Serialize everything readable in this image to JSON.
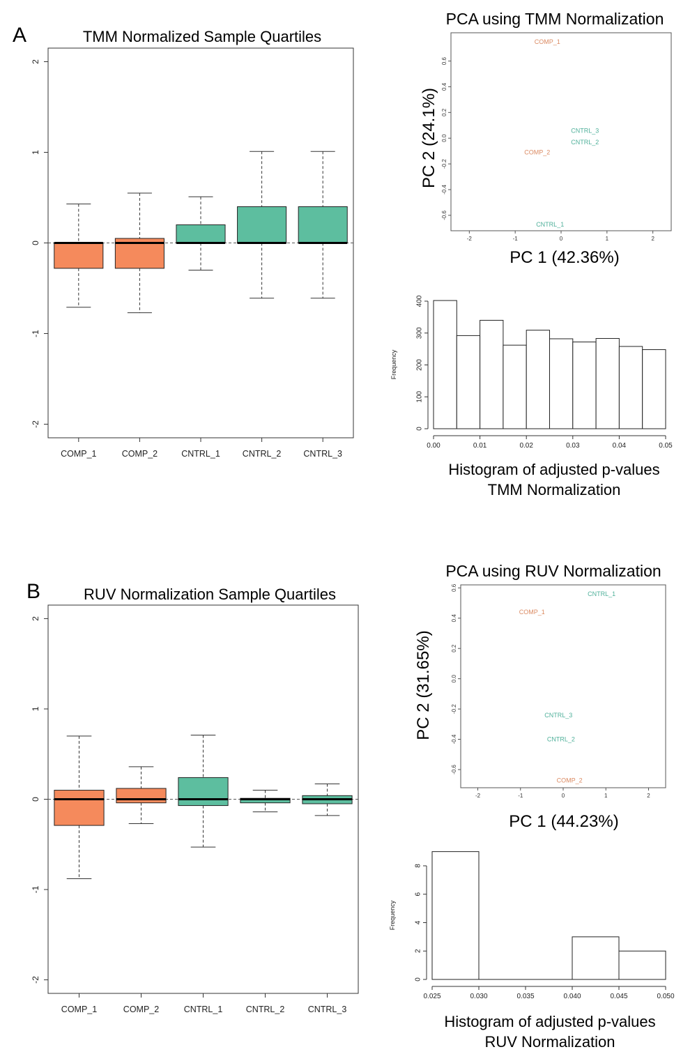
{
  "colors": {
    "comp": "#F58A5C",
    "cntrl": "#5DBE9F",
    "comp_text": "#DB8A62",
    "cntrl_text": "#4FB09A"
  },
  "panel_a": {
    "letter": "A",
    "box_title": "TMM Normalized Sample Quartiles",
    "pca_title": "PCA using TMM Normalization",
    "pca_xlabel": "PC 1 (42.36%)",
    "pca_ylabel": "PC 2 (24.1%)",
    "hist_ylabel": "Frequency",
    "hist_caption_line1": "Histogram of adjusted p-values",
    "hist_caption_line2": "TMM Normalization"
  },
  "panel_b": {
    "letter": "B",
    "box_title": "RUV Normalization Sample Quartiles",
    "pca_title": "PCA using RUV Normalization",
    "pca_xlabel": "PC 1 (44.23%)",
    "pca_ylabel": "PC 2 (31.65%)",
    "hist_ylabel": "Frequency",
    "hist_caption_line1": "Histogram of adjusted p-values",
    "hist_caption_line2": "RUV Normalization"
  },
  "chart_data": [
    {
      "type": "box",
      "title": "TMM Normalized Sample Quartiles",
      "categories": [
        "COMP_1",
        "COMP_2",
        "CNTRL_1",
        "CNTRL_2",
        "CNTRL_3"
      ],
      "groups": [
        "comp",
        "comp",
        "cntrl",
        "cntrl",
        "cntrl"
      ],
      "boxes": [
        {
          "whisker_low": -0.71,
          "q1": -0.28,
          "median": 0.0,
          "q3": 0.0,
          "whisker_high": 0.43
        },
        {
          "whisker_low": -0.77,
          "q1": -0.28,
          "median": 0.0,
          "q3": 0.05,
          "whisker_high": 0.55
        },
        {
          "whisker_low": -0.3,
          "q1": 0.0,
          "median": 0.0,
          "q3": 0.2,
          "whisker_high": 0.51
        },
        {
          "whisker_low": -0.61,
          "q1": 0.0,
          "median": 0.0,
          "q3": 0.4,
          "whisker_high": 1.01
        },
        {
          "whisker_low": -0.61,
          "q1": 0.0,
          "median": 0.0,
          "q3": 0.4,
          "whisker_high": 1.01
        }
      ],
      "ylim": [
        -2.15,
        2.15
      ],
      "yticks": [
        -2,
        -1,
        0,
        1,
        2
      ],
      "reference_line": 0
    },
    {
      "type": "scatter",
      "title": "PCA using TMM Normalization",
      "xlabel": "PC 1 (42.36%)",
      "ylabel": "PC 2 (24.1%)",
      "xlim": [
        -2.4,
        2.4
      ],
      "ylim": [
        -0.72,
        0.82
      ],
      "xticks": [
        -2,
        -1,
        0,
        1,
        2
      ],
      "yticks": [
        -0.6,
        -0.4,
        -0.2,
        0.0,
        0.2,
        0.4,
        0.6
      ],
      "points": [
        {
          "label": "COMP_1",
          "group": "comp",
          "x": -0.3,
          "y": 0.75
        },
        {
          "label": "CNTRL_3",
          "group": "cntrl",
          "x": 0.52,
          "y": 0.06
        },
        {
          "label": "CNTRL_2",
          "group": "cntrl",
          "x": 0.52,
          "y": -0.03
        },
        {
          "label": "COMP_2",
          "group": "comp",
          "x": -0.52,
          "y": -0.11
        },
        {
          "label": "CNTRL_1",
          "group": "cntrl",
          "x": -0.24,
          "y": -0.67
        }
      ]
    },
    {
      "type": "bar",
      "subtype": "histogram",
      "caption": [
        "Histogram of adjusted p-values",
        "TMM Normalization"
      ],
      "ylabel": "Frequency",
      "bin_edges": [
        0.0,
        0.005,
        0.01,
        0.015,
        0.02,
        0.025,
        0.03,
        0.035,
        0.04,
        0.045,
        0.05
      ],
      "values": [
        402,
        292,
        340,
        262,
        309,
        282,
        272,
        283,
        258,
        248
      ],
      "xlim": [
        0.0,
        0.05
      ],
      "xticks": [
        0.0,
        0.01,
        0.02,
        0.03,
        0.04,
        0.05
      ],
      "xtick_labels": [
        "0.00",
        "0.01",
        "0.02",
        "0.03",
        "0.04",
        "0.05"
      ],
      "ylim": [
        0,
        400
      ],
      "yticks": [
        0,
        100,
        200,
        300,
        400
      ]
    },
    {
      "type": "box",
      "title": "RUV Normalization Sample Quartiles",
      "categories": [
        "COMP_1",
        "COMP_2",
        "CNTRL_1",
        "CNTRL_2",
        "CNTRL_3"
      ],
      "groups": [
        "comp",
        "comp",
        "cntrl",
        "cntrl",
        "cntrl"
      ],
      "boxes": [
        {
          "whisker_low": -0.88,
          "q1": -0.29,
          "median": 0.0,
          "q3": 0.1,
          "whisker_high": 0.7
        },
        {
          "whisker_low": -0.27,
          "q1": -0.04,
          "median": 0.0,
          "q3": 0.12,
          "whisker_high": 0.36
        },
        {
          "whisker_low": -0.53,
          "q1": -0.07,
          "median": 0.0,
          "q3": 0.24,
          "whisker_high": 0.71
        },
        {
          "whisker_low": -0.14,
          "q1": -0.04,
          "median": 0.0,
          "q3": 0.01,
          "whisker_high": 0.1
        },
        {
          "whisker_low": -0.18,
          "q1": -0.05,
          "median": 0.0,
          "q3": 0.04,
          "whisker_high": 0.17
        }
      ],
      "ylim": [
        -2.15,
        2.15
      ],
      "yticks": [
        -2,
        -1,
        0,
        1,
        2
      ],
      "reference_line": 0
    },
    {
      "type": "scatter",
      "title": "PCA using RUV Normalization",
      "xlabel": "PC 1 (44.23%)",
      "ylabel": "PC 2 (31.65%)",
      "xlim": [
        -2.4,
        2.4
      ],
      "ylim": [
        -0.72,
        0.62
      ],
      "xticks": [
        -2,
        -1,
        0,
        1,
        2
      ],
      "yticks": [
        -0.6,
        -0.4,
        -0.2,
        0.0,
        0.2,
        0.4,
        0.6
      ],
      "points": [
        {
          "label": "CNTRL_1",
          "group": "cntrl",
          "x": 0.9,
          "y": 0.56
        },
        {
          "label": "COMP_1",
          "group": "comp",
          "x": -0.73,
          "y": 0.44
        },
        {
          "label": "CNTRL_3",
          "group": "cntrl",
          "x": -0.11,
          "y": -0.24
        },
        {
          "label": "CNTRL_2",
          "group": "cntrl",
          "x": -0.05,
          "y": -0.4
        },
        {
          "label": "COMP_2",
          "group": "comp",
          "x": 0.15,
          "y": -0.67
        }
      ]
    },
    {
      "type": "bar",
      "subtype": "histogram",
      "caption": [
        "Histogram of adjusted p-values",
        "RUV Normalization"
      ],
      "ylabel": "Frequency",
      "bin_edges": [
        0.025,
        0.03,
        0.035,
        0.04,
        0.045,
        0.05
      ],
      "values": [
        9,
        0,
        0,
        3,
        2
      ],
      "xlim": [
        0.025,
        0.05
      ],
      "xticks": [
        0.025,
        0.03,
        0.035,
        0.04,
        0.045,
        0.05
      ],
      "xtick_labels": [
        "0.025",
        "0.030",
        "0.035",
        "0.040",
        "0.045",
        "0.050"
      ],
      "ylim": [
        0,
        8
      ],
      "yticks": [
        0,
        2,
        4,
        6,
        8
      ]
    }
  ]
}
